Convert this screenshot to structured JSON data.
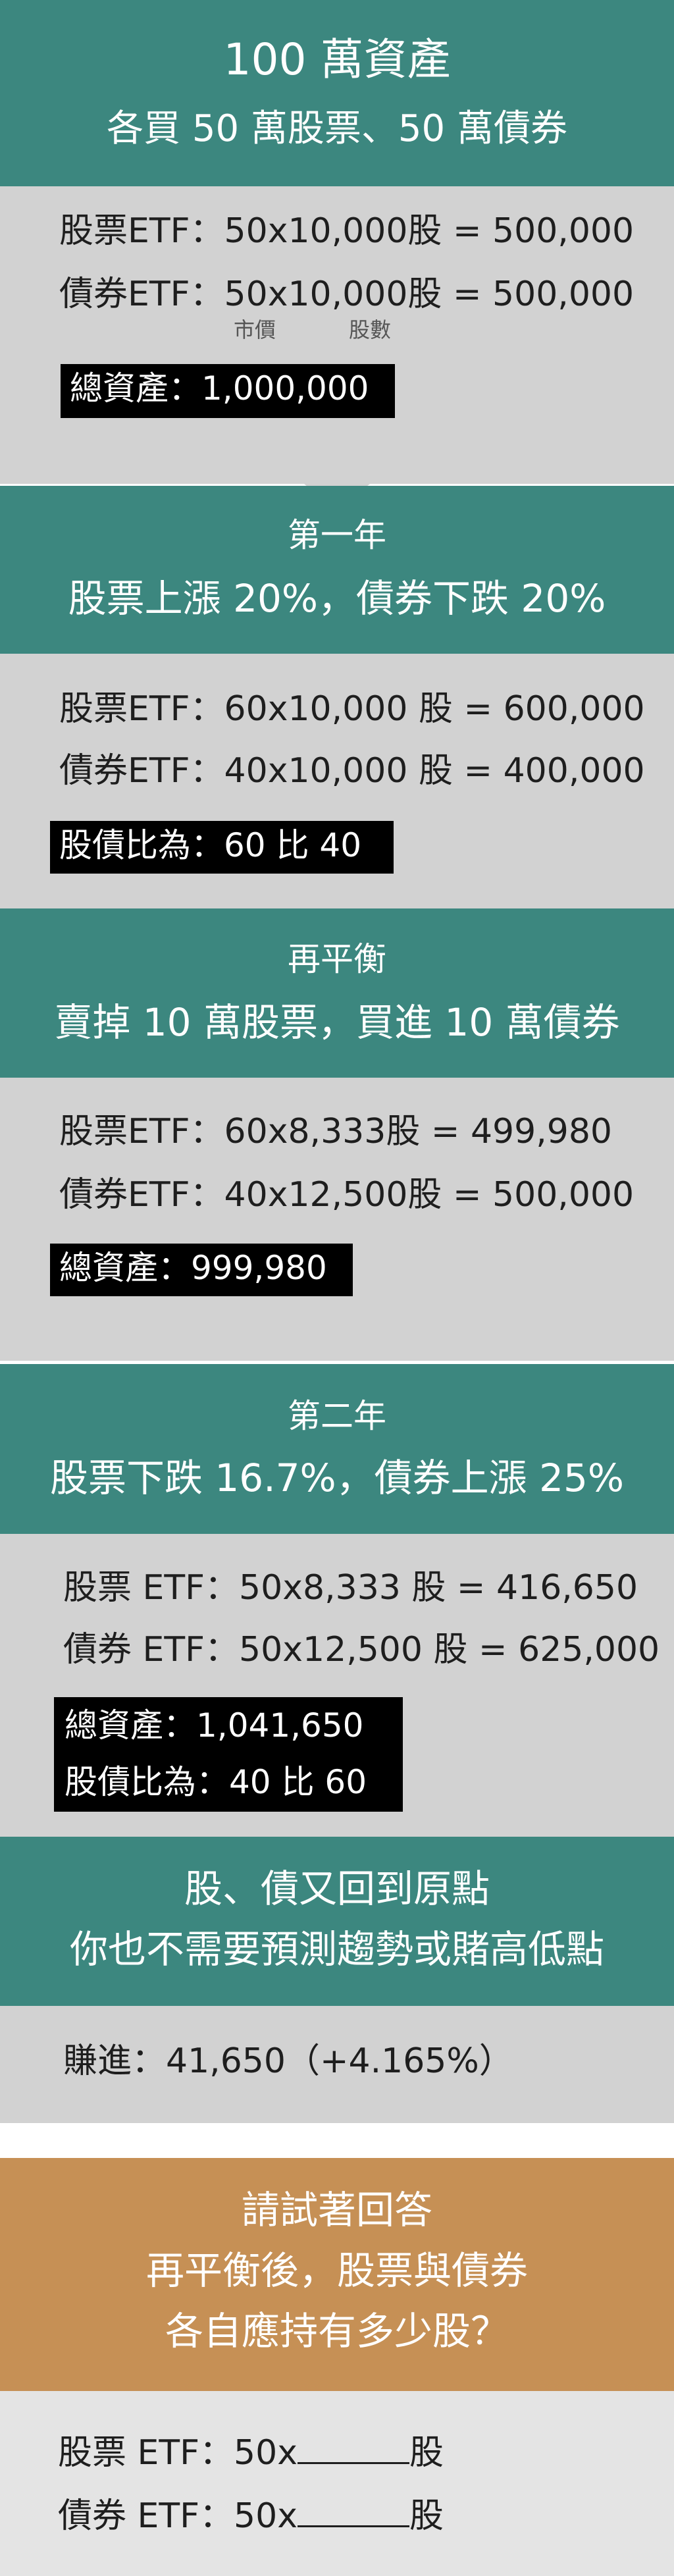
{
  "intro": {
    "title": "100 萬資產",
    "subtitle": "各買 50 萬股票、50 萬債券",
    "stock_line": "股票ETF：50x10,000股 = 500,000",
    "bond_line": "債券ETF：50x10,000股 = 500,000",
    "price_label": "市價",
    "shares_label": "股數",
    "total": "總資產：1,000,000"
  },
  "year1": {
    "heading": "第一年",
    "subtitle": "股票上漲 20%，債券下跌 20%",
    "stock_line": "股票ETF：60x10,000 股 = 600,000",
    "bond_line": "債券ETF：40x10,000 股 = 400,000",
    "ratio": "股債比為：60 比 40"
  },
  "rebalance": {
    "heading": "再平衡",
    "subtitle": "賣掉 10 萬股票，買進 10 萬債券",
    "stock_line": "股票ETF：60x8,333股 = 499,980",
    "bond_line": "債券ETF：40x12,500股 = 500,000",
    "total": "總資產：999,980"
  },
  "year2": {
    "heading": "第二年",
    "subtitle": "股票下跌 16.7%，債券上漲 25%",
    "stock_line": "股票 ETF：50x8,333 股 = 416,650",
    "bond_line": "債券 ETF：50x12,500 股 = 625,000",
    "total": "總資產：1,041,650",
    "ratio": "股債比為：40 比 60"
  },
  "conclusion": {
    "line1": "股、債又回到原點",
    "line2": "你也不需要預測趨勢或賭高低點",
    "gain": "賺進：41,650（+4.165%）"
  },
  "quiz": {
    "line1": "請試著回答",
    "line2": "再平衡後，股票與債券",
    "line3": "各自應持有多少股？",
    "stock_prefix": "股票 ETF：50x",
    "bond_prefix": "債券 ETF：50x",
    "unit": "股"
  },
  "colors": {
    "teal": "#3c877f",
    "tan": "#c69055",
    "light_gray": "#d2d2d2",
    "lighter_gray": "#e4e4e4"
  }
}
